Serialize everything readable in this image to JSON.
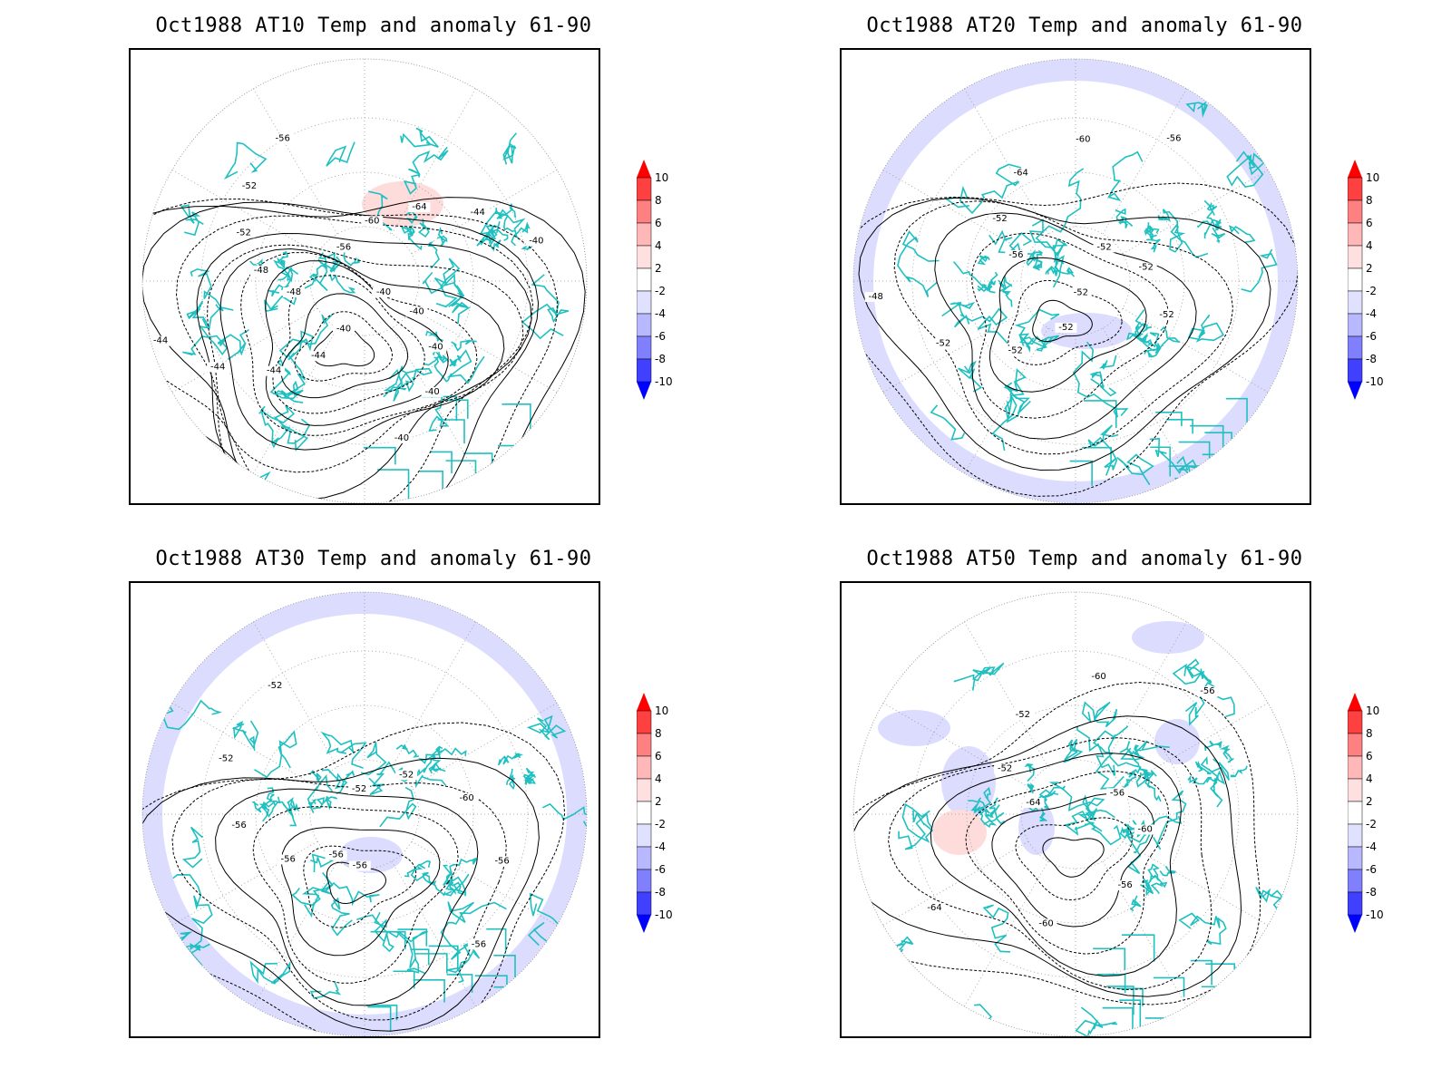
{
  "panels": [
    {
      "title": "Oct1988 AT10 Temp and anomaly 61-90",
      "contour_labels": [
        "-40",
        "-40",
        "-40",
        "-40",
        "-40",
        "-40",
        "-44",
        "-44",
        "-44",
        "-44",
        "-48",
        "-48",
        "-52",
        "-52",
        "-56",
        "-56",
        "-60",
        "-64",
        "-44",
        "-40"
      ],
      "anomaly_blobs": [
        {
          "sign": "positive",
          "level": "2 to 4"
        }
      ]
    },
    {
      "title": "Oct1988 AT20 Temp and anomaly 61-90",
      "contour_labels": [
        "-52",
        "-52",
        "-52",
        "-52",
        "-48",
        "-56",
        "-52",
        "-64",
        "-60",
        "-56",
        "-52",
        "-52",
        "-52"
      ],
      "anomaly_blobs": [
        {
          "sign": "negative",
          "level": "-2 to -4"
        }
      ]
    },
    {
      "title": "Oct1988 AT30 Temp and anomaly 61-90",
      "contour_labels": [
        "-56",
        "-56",
        "-56",
        "-52",
        "-52",
        "-52",
        "-52",
        "-60",
        "-56",
        "-56",
        "-56"
      ],
      "anomaly_blobs": [
        {
          "sign": "negative",
          "level": "-2 to -4"
        }
      ]
    },
    {
      "title": "Oct1988 AT50 Temp and anomaly 61-90",
      "contour_labels": [
        "-64",
        "-52",
        "-52",
        "-60",
        "-56",
        "-56",
        "-60",
        "-56",
        "-60",
        "-64"
      ],
      "anomaly_blobs": [
        {
          "sign": "negative",
          "level": "-2 to -4"
        },
        {
          "sign": "positive",
          "level": "2 to 4"
        }
      ]
    }
  ],
  "colorbar": {
    "labels": [
      "10",
      "8",
      "6",
      "4",
      "2",
      "-2",
      "-4",
      "-6",
      "-8",
      "-10"
    ],
    "colors": [
      "#ff0000",
      "#ff4040",
      "#ff8080",
      "#ffb8b8",
      "#ffe0e0",
      "#ffffff",
      "#e0e0ff",
      "#b8b8ff",
      "#8080ff",
      "#4040ff",
      "#0000ff"
    ]
  },
  "style": {
    "coastline_color": "#20c0c0",
    "contour_color": "#000000",
    "neg_anom_light": "#dcdcff",
    "pos_anom_light": "#ffdcdc",
    "grid_color": "#999999"
  }
}
